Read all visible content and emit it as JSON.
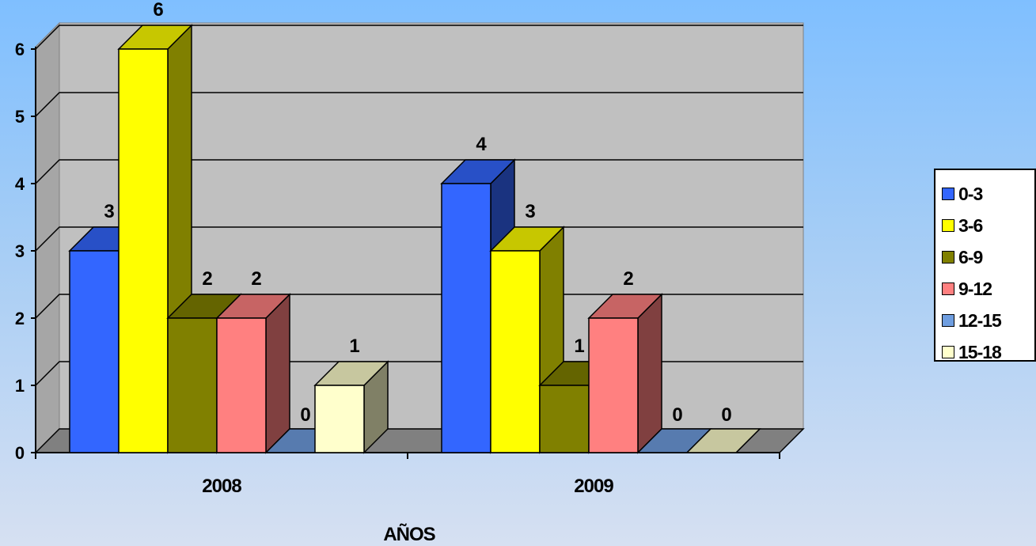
{
  "chart_data": {
    "type": "bar",
    "categories": [
      "2008",
      "2009"
    ],
    "series": [
      {
        "name": "0-3",
        "values": [
          3,
          4
        ],
        "color": "#3366ff"
      },
      {
        "name": "3-6",
        "values": [
          6,
          3
        ],
        "color": "#ffff00"
      },
      {
        "name": "6-9",
        "values": [
          2,
          1
        ],
        "color": "#808000"
      },
      {
        "name": "9-12",
        "values": [
          2,
          2
        ],
        "color": "#ff8080"
      },
      {
        "name": "12-15",
        "values": [
          0,
          0
        ],
        "color": "#6f9ee0"
      },
      {
        "name": "15-18",
        "values": [
          1,
          0
        ],
        "color": "#ffffcc"
      }
    ],
    "xlabel": "AÑOS",
    "ylabel": "",
    "ylim": [
      0,
      6
    ],
    "yticks": [
      0,
      1,
      2,
      3,
      4,
      5,
      6
    ],
    "grid": true,
    "legend_position": "right",
    "data_labels": true,
    "style": "3d-clustered-column"
  }
}
